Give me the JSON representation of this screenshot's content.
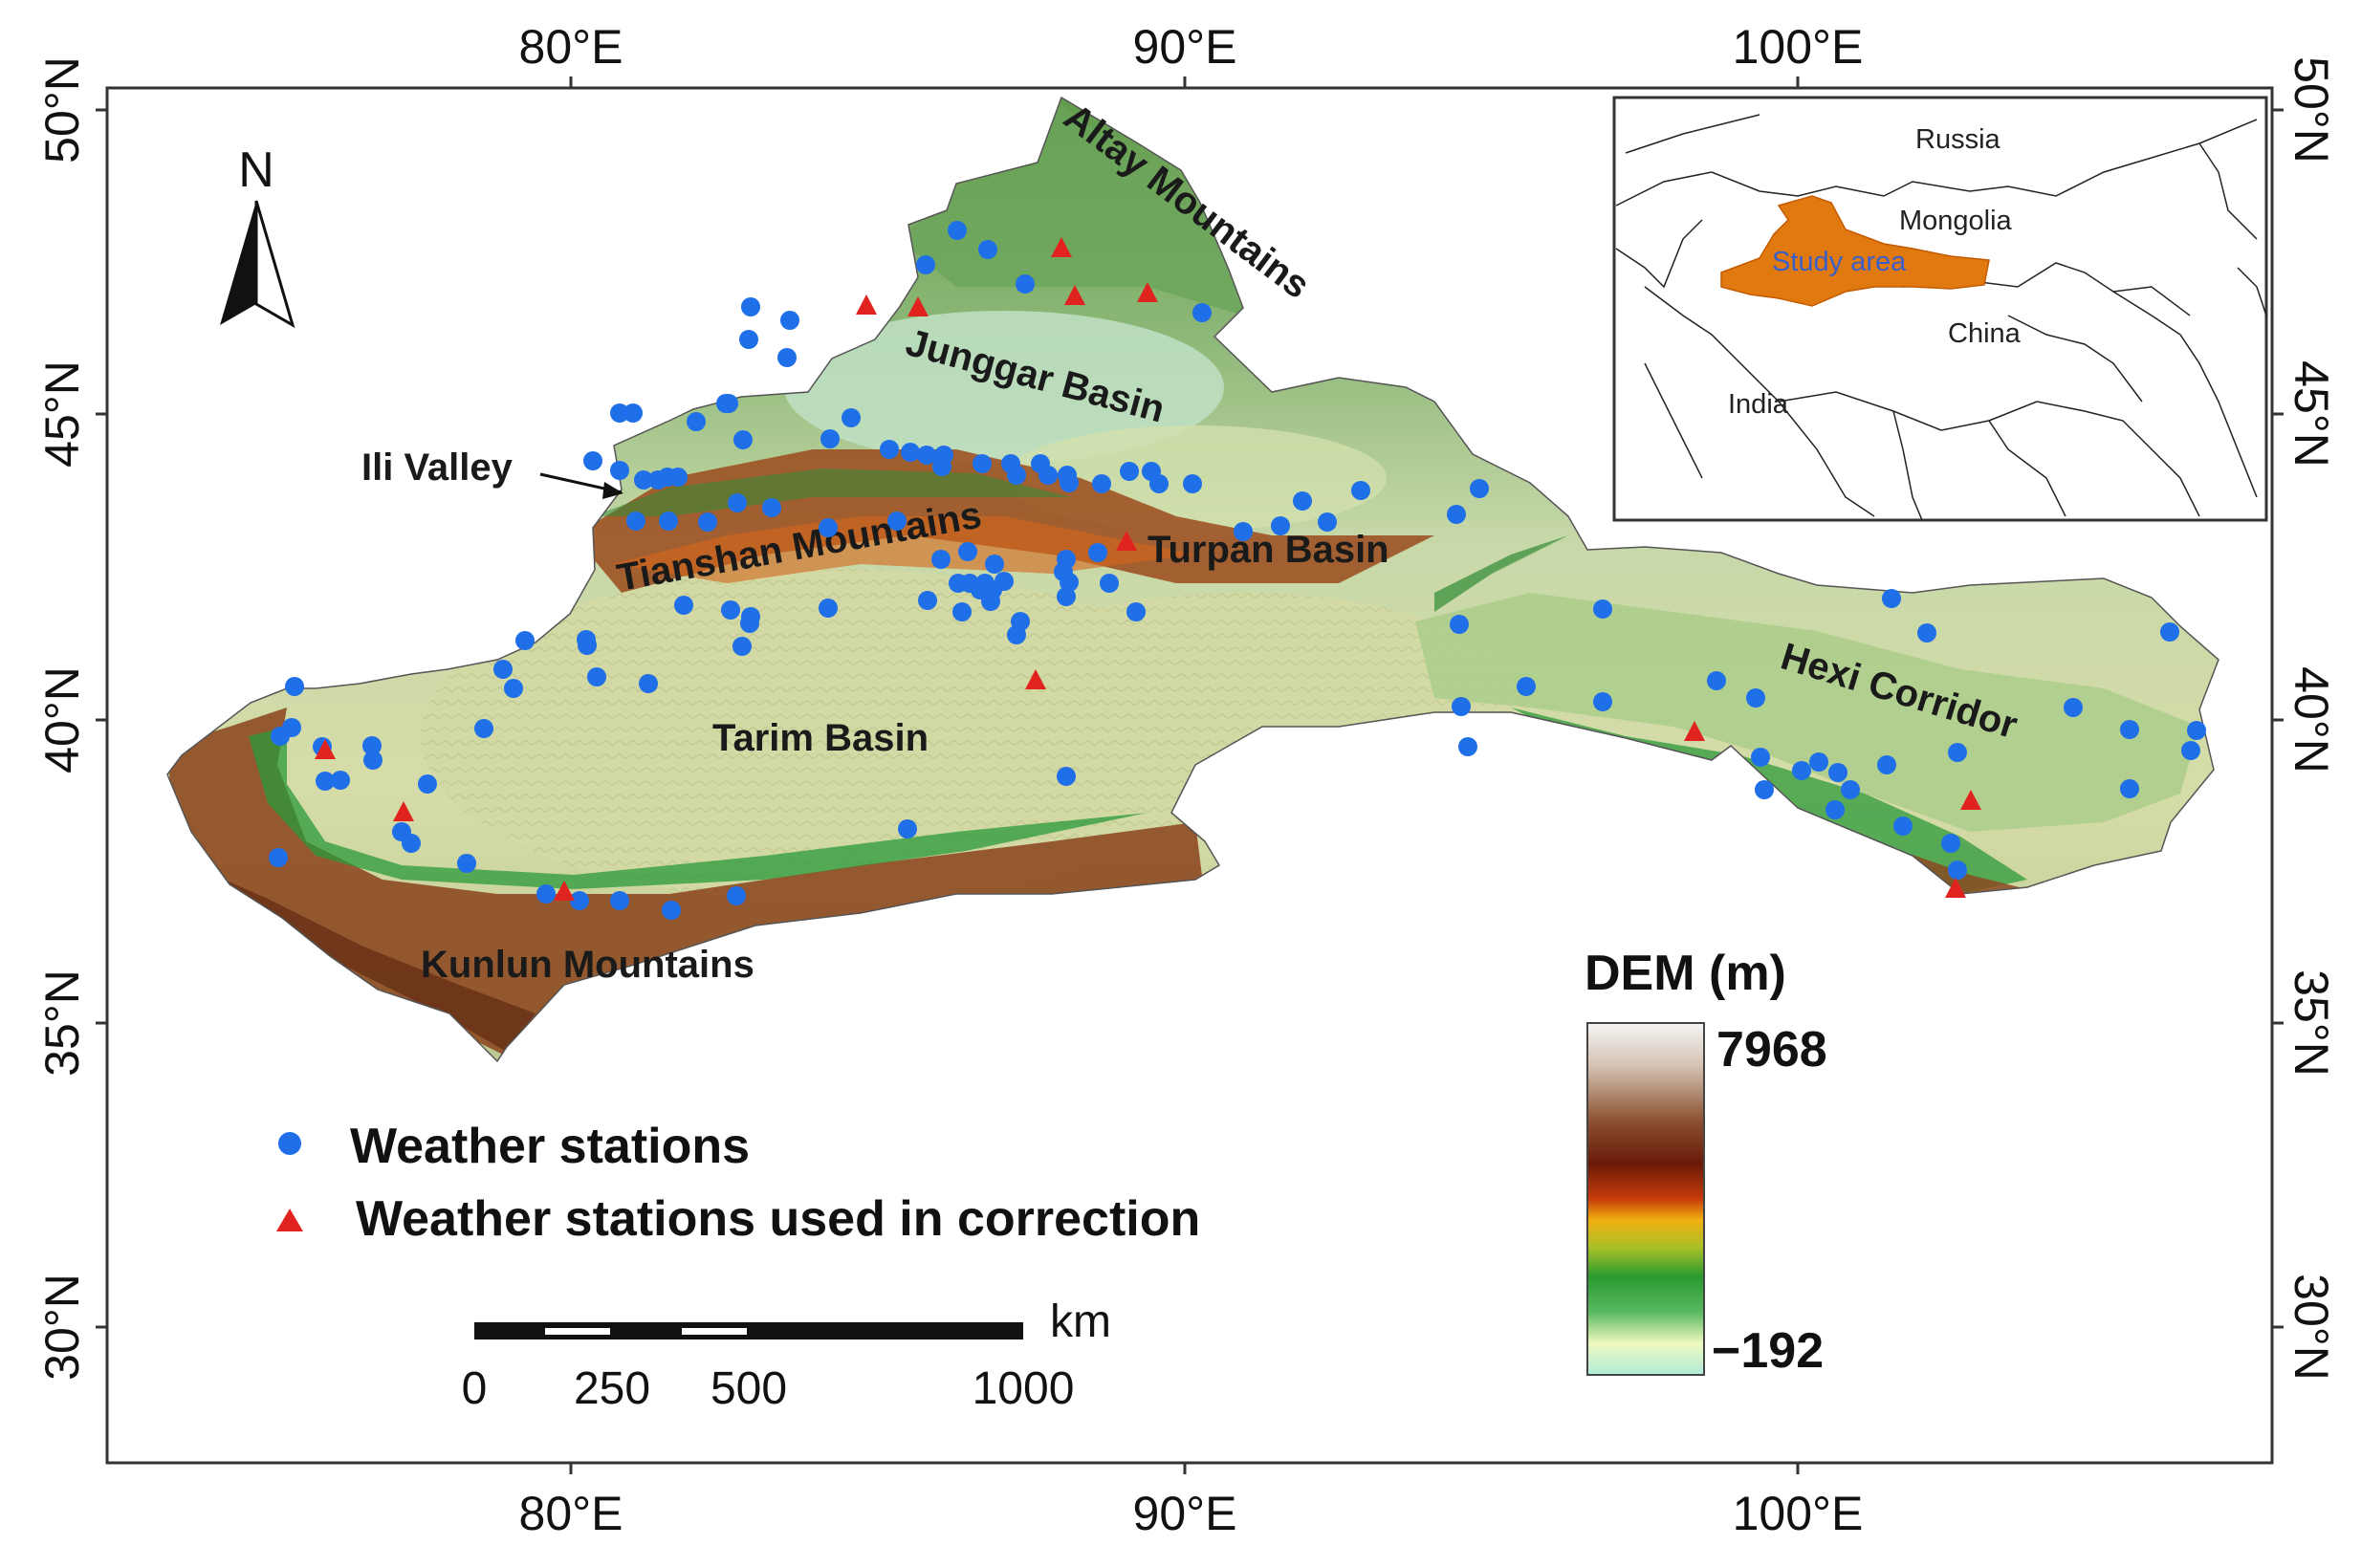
{
  "map": {
    "lon_ticks": [
      "80°E",
      "90°E",
      "100°E"
    ],
    "lat_ticks": [
      "50°N",
      "45°N",
      "40°N",
      "35°N",
      "30°N"
    ],
    "north_label": "N",
    "regions": {
      "altay": "Altay Mountains",
      "junggar": "Junggar Basin",
      "ili": "Ili Valley",
      "tianshan": "Tianshan Mountains",
      "turpan": "Turpan Basin",
      "tarim": "Tarim Basin",
      "hexi": "Hexi Corridor",
      "kunlun": "Kunlun Mountains"
    },
    "inset": {
      "russia": "Russia",
      "mongolia": "Mongolia",
      "study_area": "Study area",
      "china": "China",
      "india": "India"
    },
    "legend": {
      "stations": "Weather stations",
      "stations_correction": "Weather stations used in correction"
    },
    "scale_bar": {
      "unit": "km",
      "ticks": [
        "0",
        "250",
        "500",
        "1000"
      ]
    },
    "dem_legend": {
      "title": "DEM (m)",
      "max": "7968",
      "min": "−192"
    },
    "colors": {
      "station_marker": "#1f6fe8",
      "correction_marker": "#e0231f",
      "study_area_fill": "#e07a10",
      "lowland": "#cfe9b0",
      "mountain": "#6b3a1f"
    }
  }
}
